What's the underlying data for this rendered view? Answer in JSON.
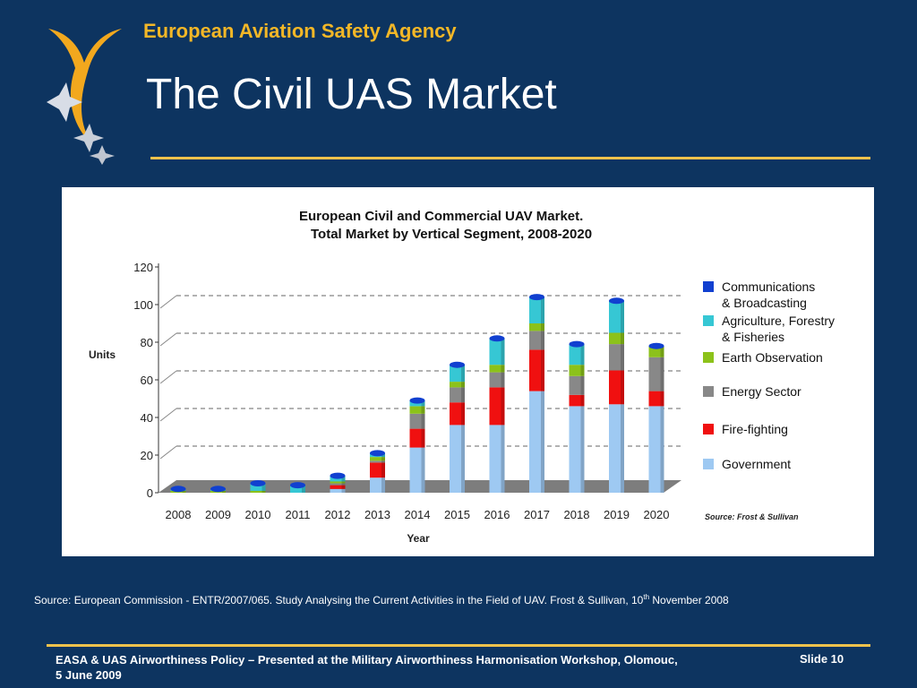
{
  "header": {
    "organization": "European Aviation Safety Agency",
    "title": "The Civil UAS Market"
  },
  "colors": {
    "background": "#0d3460",
    "accent": "#f3b727",
    "rule": "#f0c24c"
  },
  "chart_data": {
    "type": "bar",
    "stacked": true,
    "title": "European Civil and Commercial UAV Market.",
    "subtitle": "Total Market by Vertical Segment, 2008-2020",
    "xlabel": "Year",
    "ylabel": "Units",
    "ylim": [
      0,
      120
    ],
    "yticks": [
      0,
      20,
      40,
      60,
      80,
      100,
      120
    ],
    "grid": true,
    "legend_position": "right",
    "categories": [
      "2008",
      "2009",
      "2010",
      "2011",
      "2012",
      "2013",
      "2014",
      "2015",
      "2016",
      "2017",
      "2018",
      "2019",
      "2020"
    ],
    "series": [
      {
        "name": "Government",
        "color": "#9ec9f2",
        "values": [
          0,
          0,
          0,
          0,
          2,
          8,
          24,
          36,
          36,
          54,
          46,
          47,
          46
        ]
      },
      {
        "name": "Fire-fighting",
        "color": "#f01010",
        "values": [
          0,
          0,
          0,
          0,
          2,
          8,
          10,
          12,
          20,
          22,
          6,
          18,
          8
        ]
      },
      {
        "name": "Energy Sector",
        "color": "#888888",
        "values": [
          0,
          0,
          0,
          0,
          1,
          1,
          8,
          8,
          8,
          10,
          10,
          14,
          18
        ]
      },
      {
        "name": "Earth Observation",
        "color": "#8cc21a",
        "values": [
          1,
          1,
          1,
          0,
          1,
          2,
          4,
          3,
          4,
          4,
          6,
          6,
          6
        ]
      },
      {
        "name": "Agriculture, Forestry & Fisheries",
        "color": "#36c7d4",
        "values": [
          1,
          1,
          4,
          4,
          3,
          2,
          3,
          9,
          14,
          14,
          11,
          17,
          0
        ]
      },
      {
        "name": "Communications & Broadcasting",
        "color": "#1140d0",
        "values": [
          0,
          0,
          0,
          0,
          0,
          0,
          0,
          0,
          0,
          0,
          0,
          0,
          0
        ]
      }
    ],
    "legend_labels": [
      [
        "Communications",
        "& Broadcasting"
      ],
      [
        "Agriculture, Forestry",
        "& Fisheries"
      ],
      [
        "Earth Observation"
      ],
      [
        "Energy Sector"
      ],
      [
        "Fire-fighting"
      ],
      [
        "Government"
      ]
    ],
    "source_note": "Source: Frost & Sullivan"
  },
  "source": {
    "prefix": "Source: European Commission - ENTR/2007/065. Study Analysing the Current Activities in the Field of UAV. Frost & Sullivan, 10",
    "sup": "th",
    "suffix": " November 2008"
  },
  "footer": {
    "text": "EASA & UAS Airworthiness Policy – Presented at the Military Airworthiness Harmonisation Workshop, Olomouc, 5 June 2009",
    "slide": "Slide 10"
  }
}
